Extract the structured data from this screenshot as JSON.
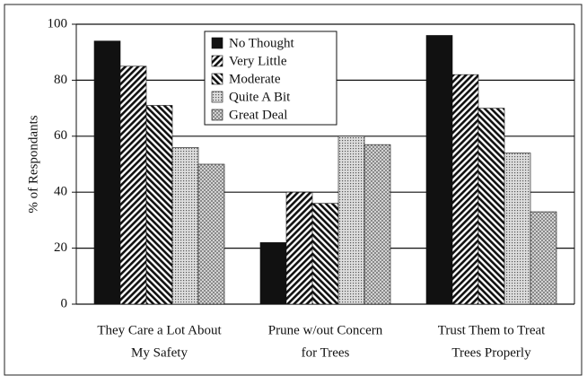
{
  "chart_data": {
    "type": "bar",
    "y_label": "% of Respondants",
    "categories": [
      [
        "They Care a Lot About",
        "My Safety"
      ],
      [
        "Prune w/out Concern",
        "for Trees"
      ],
      [
        "Trust Them to Treat",
        "Trees Properly"
      ]
    ],
    "series": [
      {
        "name": "No Thought",
        "color": "#111111",
        "pattern": "solid",
        "values": [
          94,
          22,
          96
        ]
      },
      {
        "name": "Very Little",
        "color": "#111111",
        "pattern": "hatch-right",
        "values": [
          85,
          40,
          82
        ]
      },
      {
        "name": "Moderate",
        "color": "#111111",
        "pattern": "hatch-left",
        "values": [
          71,
          36,
          70
        ]
      },
      {
        "name": "Quite A Bit",
        "color": "#666666",
        "pattern": "dots",
        "values": [
          56,
          60,
          54
        ]
      },
      {
        "name": "Great Deal",
        "color": "#666666",
        "pattern": "cross",
        "values": [
          50,
          57,
          33
        ]
      }
    ],
    "ylim": [
      0,
      100
    ],
    "yticks": [
      0,
      20,
      40,
      60,
      80,
      100
    ],
    "grid": true,
    "legend": "top-center"
  }
}
